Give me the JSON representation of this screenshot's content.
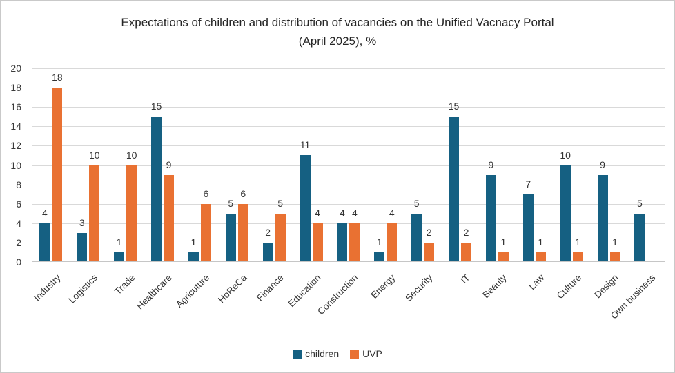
{
  "window": {
    "background_color": "#ffffff",
    "border_color": "#c9c9c9"
  },
  "chart_data": {
    "type": "bar",
    "title": "Expectations of children and distribution of vacancies on the Unified Vacnacy Portal (April 2025), %",
    "title_lines": [
      "Expectations of children and distribution of vacancies on the Unified Vacnacy Portal",
      "(April 2025), %"
    ],
    "categories": [
      "Industry",
      "Logistics",
      "Trade",
      "Healthcare",
      "Agricuture",
      "HoReCa",
      "Finance",
      "Education",
      "Construction",
      "Energy",
      "Security",
      "IT",
      "Beauty",
      "Law",
      "Culture",
      "Design",
      "Own business"
    ],
    "series": [
      {
        "name": "children",
        "color": "#156082",
        "values": [
          4,
          3,
          1,
          15,
          1,
          5,
          2,
          11,
          4,
          1,
          5,
          15,
          9,
          7,
          10,
          9,
          5
        ]
      },
      {
        "name": "UVP",
        "color": "#E97132",
        "values": [
          18,
          10,
          10,
          9,
          6,
          6,
          5,
          4,
          4,
          4,
          2,
          2,
          1,
          1,
          1,
          1,
          0
        ]
      }
    ],
    "xlabel": "",
    "ylabel": "",
    "ylim": [
      0,
      20
    ],
    "ytick_step": 2,
    "yticks": [
      0,
      2,
      4,
      6,
      8,
      10,
      12,
      14,
      16,
      18,
      20
    ],
    "grid": true,
    "gridline_color": "#d9d9d9",
    "axis_line_color": "#c6c6c6",
    "data_labels": true,
    "hide_zero_labels": true,
    "x_label_rotation_deg": 45,
    "legend_position": "bottom"
  }
}
